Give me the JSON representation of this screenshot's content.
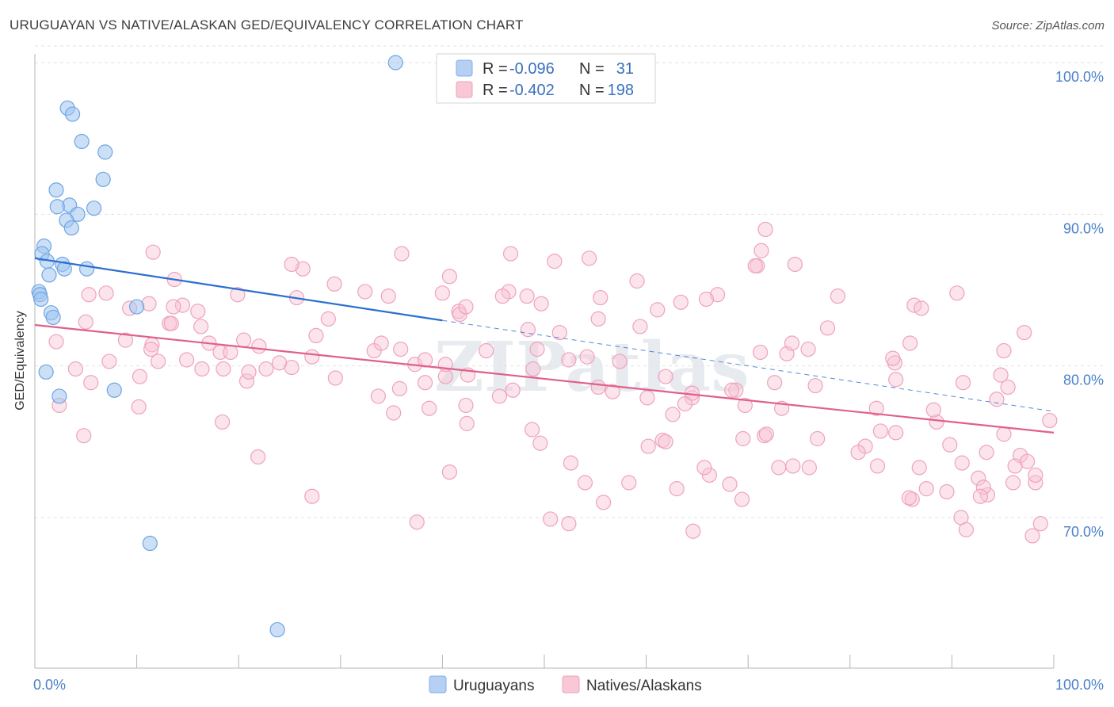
{
  "title": "URUGUAYAN VS NATIVE/ALASKAN GED/EQUIVALENCY CORRELATION CHART",
  "source": "Source: ZipAtlas.com",
  "chart_data": {
    "type": "scatter",
    "xlabel": "",
    "ylabel": "GED/Equivalency",
    "xlim": [
      0,
      100
    ],
    "ylim": [
      60,
      102
    ],
    "x_tick_labels": [
      "0.0%",
      "100.0%"
    ],
    "y_ticks": [
      70,
      80,
      90,
      100
    ],
    "y_tick_labels": [
      "70.0%",
      "80.0%",
      "90.0%",
      "100.0%"
    ],
    "watermark": "ZIPatlas",
    "colors": {
      "uruguayans": "#7fb0e8",
      "natives": "#f0a0b8",
      "blue_line": "#2a6fd0",
      "pink_line": "#e0608a"
    },
    "legend": [
      {
        "series": "Uruguayans",
        "r_label": "R =",
        "r_value": "-0.096",
        "n_label": "N =",
        "n_value": "31"
      },
      {
        "series": "Natives/Alaskans",
        "r_label": "R =",
        "r_value": "-0.402",
        "n_label": "N =",
        "n_value": "198"
      }
    ],
    "series": [
      {
        "name": "Uruguayans",
        "trend": {
          "x0": 0,
          "y0": 87.1,
          "x1": 40,
          "y1": 83.0,
          "dash_to_x": 100,
          "dash_to_y": 77.0
        },
        "points": [
          [
            35.4,
            100.0
          ],
          [
            3.2,
            97.0
          ],
          [
            3.7,
            96.6
          ],
          [
            4.6,
            94.8
          ],
          [
            6.9,
            94.1
          ],
          [
            6.7,
            92.3
          ],
          [
            2.1,
            91.6
          ],
          [
            3.4,
            90.6
          ],
          [
            2.2,
            90.5
          ],
          [
            5.8,
            90.4
          ],
          [
            4.2,
            90.0
          ],
          [
            3.1,
            89.6
          ],
          [
            3.6,
            89.1
          ],
          [
            0.9,
            87.9
          ],
          [
            0.7,
            87.4
          ],
          [
            1.2,
            86.9
          ],
          [
            2.7,
            86.7
          ],
          [
            2.9,
            86.4
          ],
          [
            5.1,
            86.4
          ],
          [
            1.4,
            86.0
          ],
          [
            0.4,
            84.9
          ],
          [
            0.5,
            84.7
          ],
          [
            0.6,
            84.4
          ],
          [
            1.6,
            83.5
          ],
          [
            1.8,
            83.2
          ],
          [
            10.0,
            83.9
          ],
          [
            1.1,
            79.6
          ],
          [
            2.4,
            78.0
          ],
          [
            7.8,
            78.4
          ],
          [
            11.3,
            68.3
          ],
          [
            23.8,
            62.6
          ]
        ]
      },
      {
        "name": "Natives/Alaskans",
        "trend": {
          "x0": 0,
          "y0": 82.7,
          "x1": 100,
          "y1": 75.6
        },
        "points": [
          [
            90.9,
            70.0
          ],
          [
            76.6,
            78.7
          ],
          [
            55.5,
            84.5
          ],
          [
            99.6,
            76.4
          ],
          [
            66.2,
            72.8
          ],
          [
            16.3,
            82.6
          ],
          [
            25.2,
            79.9
          ],
          [
            11.5,
            81.4
          ],
          [
            14.5,
            84.0
          ],
          [
            49.3,
            81.1
          ],
          [
            68.2,
            72.2
          ],
          [
            89.5,
            71.7
          ],
          [
            88.5,
            76.3
          ],
          [
            93.4,
            74.3
          ],
          [
            4.0,
            79.8
          ],
          [
            70.9,
            86.6
          ],
          [
            63.0,
            71.9
          ],
          [
            37.3,
            80.1
          ],
          [
            96.7,
            74.1
          ],
          [
            41.6,
            83.6
          ],
          [
            86.8,
            73.3
          ],
          [
            5.0,
            82.9
          ],
          [
            29.4,
            85.4
          ],
          [
            38.3,
            78.9
          ],
          [
            33.3,
            81.0
          ],
          [
            46.7,
            87.4
          ],
          [
            59.1,
            85.6
          ],
          [
            18.2,
            80.9
          ],
          [
            42.3,
            77.4
          ],
          [
            63.4,
            84.2
          ],
          [
            67.0,
            84.7
          ],
          [
            86.3,
            84.0
          ],
          [
            48.9,
            79.8
          ],
          [
            42.5,
            79.4
          ],
          [
            49.7,
            84.1
          ],
          [
            52.4,
            69.6
          ],
          [
            69.5,
            75.2
          ],
          [
            44.3,
            81.0
          ],
          [
            60.2,
            74.7
          ],
          [
            85.9,
            81.5
          ],
          [
            84.5,
            79.1
          ],
          [
            16.4,
            79.8
          ],
          [
            64.6,
            69.1
          ],
          [
            11.2,
            84.1
          ],
          [
            82.7,
            73.4
          ],
          [
            71.6,
            75.4
          ],
          [
            54.4,
            87.1
          ],
          [
            86.1,
            71.2
          ],
          [
            69.4,
            71.2
          ],
          [
            61.9,
            79.3
          ],
          [
            48.4,
            82.4
          ],
          [
            38.3,
            80.4
          ],
          [
            61.6,
            75.1
          ],
          [
            17.1,
            81.5
          ],
          [
            68.8,
            78.4
          ],
          [
            78.8,
            84.6
          ],
          [
            98.7,
            69.6
          ],
          [
            2.1,
            81.6
          ],
          [
            46.9,
            78.4
          ],
          [
            14.9,
            80.4
          ],
          [
            95.1,
            75.5
          ],
          [
            5.3,
            84.7
          ],
          [
            28.8,
            83.1
          ],
          [
            46.5,
            84.9
          ],
          [
            37.5,
            69.7
          ],
          [
            19.2,
            80.9
          ],
          [
            98.2,
            72.3
          ],
          [
            96.2,
            73.4
          ],
          [
            22.0,
            81.3
          ],
          [
            73.0,
            73.3
          ],
          [
            2.4,
            77.4
          ],
          [
            84.4,
            80.2
          ],
          [
            73.3,
            77.2
          ],
          [
            55.3,
            83.1
          ],
          [
            73.8,
            80.8
          ],
          [
            49.6,
            74.9
          ],
          [
            40.7,
            85.9
          ],
          [
            71.8,
            75.5
          ],
          [
            95.5,
            78.6
          ],
          [
            94.8,
            79.4
          ],
          [
            18.4,
            76.3
          ],
          [
            84.2,
            80.5
          ],
          [
            91.1,
            78.9
          ],
          [
            92.6,
            72.6
          ],
          [
            52.6,
            73.6
          ],
          [
            16.0,
            83.6
          ],
          [
            96.0,
            72.3
          ],
          [
            45.9,
            84.6
          ],
          [
            70.7,
            86.6
          ],
          [
            13.2,
            82.8
          ],
          [
            62.6,
            76.8
          ],
          [
            55.8,
            71.0
          ],
          [
            51.0,
            86.9
          ],
          [
            93.5,
            71.5
          ],
          [
            10.3,
            79.3
          ],
          [
            52.4,
            80.4
          ],
          [
            32.4,
            84.9
          ],
          [
            95.1,
            81.0
          ],
          [
            91.4,
            69.2
          ],
          [
            61.9,
            75.0
          ],
          [
            29.5,
            79.2
          ],
          [
            76.8,
            75.2
          ],
          [
            20.8,
            79.0
          ],
          [
            40.0,
            84.8
          ],
          [
            93.1,
            72.0
          ],
          [
            83.0,
            75.7
          ],
          [
            76.0,
            73.3
          ],
          [
            4.8,
            75.4
          ],
          [
            21.0,
            79.6
          ],
          [
            98.2,
            72.8
          ],
          [
            12.1,
            80.3
          ],
          [
            59.4,
            82.6
          ],
          [
            10.2,
            77.3
          ],
          [
            71.7,
            89.0
          ],
          [
            51.5,
            82.2
          ],
          [
            71.2,
            80.9
          ],
          [
            34.0,
            81.5
          ],
          [
            9.3,
            83.8
          ],
          [
            64.5,
            77.9
          ],
          [
            35.9,
            81.1
          ],
          [
            26.3,
            86.4
          ],
          [
            55.3,
            78.6
          ],
          [
            60.1,
            77.9
          ],
          [
            74.6,
            86.7
          ],
          [
            75.9,
            81.1
          ],
          [
            48.8,
            75.8
          ],
          [
            88.2,
            77.1
          ],
          [
            94.4,
            77.8
          ],
          [
            54.0,
            72.3
          ],
          [
            65.7,
            73.3
          ],
          [
            13.7,
            85.7
          ],
          [
            81.5,
            74.7
          ],
          [
            11.6,
            87.5
          ],
          [
            19.9,
            84.7
          ],
          [
            48.3,
            84.6
          ],
          [
            74.3,
            81.5
          ],
          [
            38.7,
            77.2
          ],
          [
            36.0,
            87.4
          ],
          [
            35.8,
            78.5
          ],
          [
            72.6,
            78.9
          ],
          [
            69.7,
            77.4
          ],
          [
            13.4,
            82.8
          ],
          [
            41.7,
            83.4
          ],
          [
            90.5,
            84.8
          ],
          [
            97.1,
            82.2
          ],
          [
            84.5,
            75.6
          ],
          [
            34.7,
            84.6
          ],
          [
            5.5,
            78.9
          ],
          [
            64.5,
            78.2
          ],
          [
            25.7,
            84.5
          ],
          [
            24.0,
            80.2
          ],
          [
            92.8,
            71.4
          ],
          [
            80.8,
            74.3
          ],
          [
            65.9,
            84.4
          ],
          [
            21.9,
            74.0
          ],
          [
            87.0,
            83.8
          ],
          [
            35.2,
            76.9
          ],
          [
            74.4,
            73.4
          ],
          [
            27.6,
            82.0
          ],
          [
            22.7,
            79.8
          ],
          [
            27.2,
            80.6
          ],
          [
            33.7,
            78.0
          ],
          [
            50.6,
            69.9
          ],
          [
            97.9,
            68.8
          ],
          [
            85.8,
            71.3
          ],
          [
            68.4,
            78.4
          ],
          [
            71.3,
            87.6
          ],
          [
            25.2,
            86.7
          ],
          [
            27.2,
            71.4
          ],
          [
            13.6,
            83.9
          ],
          [
            8.9,
            81.7
          ],
          [
            97.4,
            73.7
          ],
          [
            7.3,
            80.3
          ],
          [
            82.6,
            77.2
          ],
          [
            45.6,
            78.0
          ],
          [
            42.3,
            83.9
          ],
          [
            61.1,
            83.7
          ],
          [
            18.5,
            79.8
          ],
          [
            20.5,
            81.7
          ],
          [
            57.4,
            80.3
          ],
          [
            91.0,
            73.6
          ],
          [
            54.2,
            80.6
          ],
          [
            7.0,
            84.8
          ],
          [
            40.3,
            79.3
          ],
          [
            40.7,
            73.0
          ],
          [
            11.4,
            81.1
          ],
          [
            77.8,
            82.5
          ],
          [
            40.3,
            80.1
          ],
          [
            58.3,
            72.3
          ],
          [
            87.5,
            71.9
          ],
          [
            56.7,
            78.3
          ],
          [
            42.4,
            76.2
          ],
          [
            63.8,
            77.5
          ],
          [
            89.8,
            74.8
          ]
        ]
      }
    ]
  }
}
